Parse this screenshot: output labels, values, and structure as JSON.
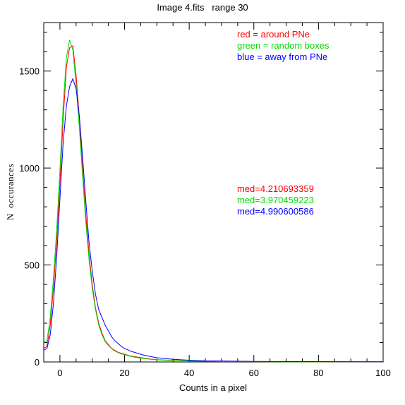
{
  "chart_data": {
    "type": "line",
    "title": "Image 4.fits   range 30",
    "xlabel": "Counts in a pixel",
    "ylabel": "N  occurances",
    "xlim": [
      -5,
      100
    ],
    "ylim": [
      0,
      1750
    ],
    "x_ticks": [
      0,
      20,
      40,
      60,
      80,
      100
    ],
    "y_ticks": [
      0,
      500,
      1000,
      1500
    ],
    "legend": [
      {
        "text": "red = around PNe",
        "color": "#ff0000"
      },
      {
        "text": "green = random boxes",
        "color": "#00dd00"
      },
      {
        "text": "blue = away from PNe",
        "color": "#0000ff"
      }
    ],
    "annotations": [
      {
        "text": "med=4.210693359",
        "color": "#ff0000"
      },
      {
        "text": "med=3.970459223",
        "color": "#00dd00"
      },
      {
        "text": "med=4.990600586",
        "color": "#0000ff"
      }
    ],
    "series": [
      {
        "color": "#ff0000",
        "x": [
          -5,
          -4,
          -3,
          -2,
          -1,
          0,
          1,
          2,
          3,
          4,
          5,
          6,
          7,
          8,
          9,
          10,
          11,
          12,
          13,
          14,
          15,
          16,
          17,
          18,
          19,
          20,
          22,
          24,
          26,
          28,
          30,
          35,
          40,
          45,
          50,
          60,
          70,
          80,
          90,
          100
        ],
        "y": [
          70,
          80,
          190,
          380,
          620,
          920,
          1250,
          1520,
          1620,
          1630,
          1480,
          1260,
          1000,
          760,
          560,
          400,
          280,
          200,
          150,
          110,
          90,
          70,
          60,
          50,
          45,
          40,
          30,
          25,
          20,
          15,
          12,
          8,
          5,
          4,
          3,
          2,
          2,
          1,
          1,
          1
        ]
      },
      {
        "color": "#00dd00",
        "x": [
          -5,
          -4,
          -3,
          -2,
          -1,
          0,
          1,
          2,
          3,
          4,
          5,
          6,
          7,
          8,
          9,
          10,
          11,
          12,
          13,
          14,
          15,
          16,
          17,
          18,
          19,
          20,
          22,
          24,
          26,
          28,
          30,
          35,
          40,
          45,
          50,
          60,
          70,
          80,
          90,
          100
        ],
        "y": [
          100,
          110,
          230,
          430,
          680,
          990,
          1320,
          1570,
          1660,
          1610,
          1430,
          1210,
          960,
          720,
          530,
          380,
          270,
          190,
          140,
          105,
          85,
          68,
          56,
          48,
          42,
          38,
          28,
          22,
          18,
          14,
          11,
          7,
          5,
          4,
          3,
          2,
          1,
          1,
          1,
          1
        ]
      },
      {
        "color": "#0000ff",
        "x": [
          -5,
          -4,
          -3,
          -2,
          -1,
          0,
          1,
          2,
          3,
          4,
          5,
          6,
          7,
          8,
          9,
          10,
          11,
          12,
          13,
          14,
          15,
          16,
          17,
          18,
          19,
          20,
          22,
          24,
          26,
          28,
          30,
          35,
          40,
          45,
          50,
          60,
          70,
          80,
          90,
          100
        ],
        "y": [
          60,
          70,
          140,
          300,
          540,
          840,
          1130,
          1320,
          1420,
          1460,
          1410,
          1270,
          1060,
          830,
          620,
          470,
          350,
          270,
          230,
          190,
          160,
          130,
          110,
          95,
          80,
          70,
          55,
          45,
          35,
          28,
          22,
          14,
          9,
          6,
          5,
          3,
          2,
          2,
          1,
          1
        ]
      }
    ]
  }
}
